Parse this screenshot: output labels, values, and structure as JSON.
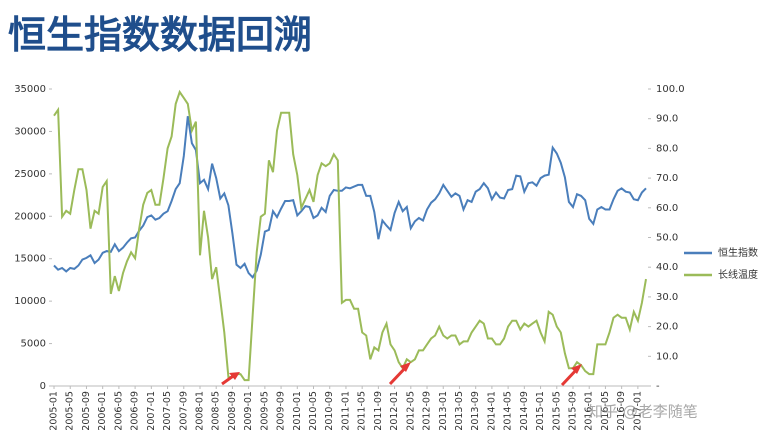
{
  "chart_data": {
    "type": "line",
    "title": "恒生指数数据回溯",
    "watermark": "知乎 @老李随笔",
    "categories": [
      "2005-01",
      null,
      null,
      null,
      "2005-05",
      null,
      null,
      null,
      "2005-09",
      null,
      null,
      null,
      "2006-01",
      null,
      null,
      null,
      "2006-05",
      null,
      null,
      null,
      "2006-09",
      null,
      null,
      null,
      "2007-01",
      null,
      null,
      null,
      "2007-05",
      null,
      null,
      null,
      "2007-09",
      null,
      null,
      null,
      "2008-01",
      null,
      null,
      null,
      "2008-05",
      null,
      null,
      null,
      "2008-09",
      null,
      null,
      null,
      "2009-01",
      null,
      null,
      null,
      "2009-05",
      null,
      null,
      null,
      "2009-09",
      null,
      null,
      null,
      "2010-01",
      null,
      null,
      null,
      "2010-05",
      null,
      null,
      null,
      "2010-09",
      null,
      null,
      null,
      "2011-01",
      null,
      null,
      null,
      "2011-05",
      null,
      null,
      null,
      "2011-09",
      null,
      null,
      null,
      "2012-01",
      null,
      null,
      null,
      "2012-05",
      null,
      null,
      null,
      "2012-09",
      null,
      null,
      null,
      "2013-01",
      null,
      null,
      null,
      "2013-05",
      null,
      null,
      null,
      "2013-09",
      null,
      null,
      null,
      "2014-01",
      null,
      null,
      null,
      "2014-05",
      null,
      null,
      null,
      "2014-09",
      null,
      null,
      null,
      "2015-01",
      null,
      null,
      null,
      "2015-05",
      null,
      null,
      null,
      "2015-09",
      null,
      null,
      null,
      "2016-01",
      null,
      null,
      null,
      "2016-05",
      null,
      null,
      null,
      "2016-09",
      null,
      null,
      null,
      "2017-01",
      null,
      null
    ],
    "series": [
      {
        "name": "恒生指数",
        "color": "#4a7ebb",
        "values": [
          14200,
          13700,
          13900,
          13500,
          13900,
          13800,
          14200,
          14900,
          15100,
          15400,
          14500,
          14900,
          15700,
          15900,
          15800,
          16700,
          15900,
          16300,
          16900,
          17400,
          17500,
          18300,
          18900,
          19900,
          20100,
          19600,
          19800,
          20300,
          20600,
          21800,
          23200,
          23900,
          27100,
          31800,
          28600,
          27800,
          23900,
          24300,
          23200,
          26200,
          24500,
          22100,
          22700,
          21300,
          18000,
          14300,
          13900,
          14400,
          13300,
          12800,
          13600,
          15500,
          18200,
          18400,
          20600,
          19900,
          20900,
          21800,
          21800,
          21900,
          20100,
          20600,
          21200,
          21100,
          19800,
          20100,
          21000,
          20500,
          22400,
          23100,
          23000,
          23000,
          23400,
          23300,
          23500,
          23700,
          23700,
          22400,
          22400,
          20500,
          17300,
          19500,
          18900,
          18400,
          20400,
          21700,
          20600,
          21100,
          18600,
          19400,
          19800,
          19500,
          20800,
          21600,
          22000,
          22700,
          23700,
          23000,
          22300,
          22700,
          22400,
          20800,
          21900,
          21700,
          22900,
          23200,
          23900,
          23300,
          22000,
          22800,
          22200,
          22100,
          23100,
          23200,
          24800,
          24700,
          22900,
          23900,
          24000,
          23600,
          24500,
          24800,
          24900,
          28100,
          27400,
          26300,
          24600,
          21700,
          21100,
          22600,
          22400,
          21900,
          19700,
          19100,
          20800,
          21100,
          20800,
          20800,
          22000,
          23000,
          23300,
          22900,
          22800,
          22000,
          21900,
          22800,
          23300
        ]
      },
      {
        "name": "长线温度",
        "color": "#9bbb59",
        "axis": "y2",
        "values": [
          91,
          93,
          57,
          59,
          58,
          66,
          73,
          73,
          66,
          53,
          59,
          58,
          67,
          69,
          31,
          37,
          32,
          38,
          42,
          45,
          43,
          53,
          61,
          65,
          66,
          61,
          61,
          70,
          80,
          84,
          95,
          99,
          97,
          95,
          86,
          89,
          44,
          59,
          50,
          36,
          40,
          29,
          18,
          3,
          3,
          4,
          4,
          2,
          2,
          24,
          45,
          57,
          58,
          76,
          72,
          86,
          92,
          92,
          92,
          78,
          71,
          60,
          63,
          66,
          62,
          71,
          75,
          74,
          75,
          78,
          76,
          28,
          29,
          29,
          26,
          26,
          18,
          17,
          9,
          13,
          12,
          18,
          21,
          14,
          12,
          8,
          6,
          9,
          8,
          9,
          12,
          12,
          14,
          16,
          17,
          20,
          17,
          16,
          17,
          17,
          14,
          15,
          15,
          18,
          20,
          22,
          21,
          16,
          16,
          14,
          14,
          16,
          20,
          22,
          22,
          19,
          21,
          20,
          21,
          22,
          18,
          15,
          25,
          24,
          20,
          18,
          11,
          6,
          6,
          8,
          7,
          5,
          4,
          4,
          14,
          14,
          14,
          18,
          23,
          24,
          23,
          23,
          19,
          25,
          22,
          28,
          36
        ]
      }
    ],
    "ylim": [
      0,
      35000
    ],
    "yticks": [
      0,
      5000,
      10000,
      15000,
      20000,
      25000,
      30000,
      35000
    ],
    "y2lim": [
      0,
      100
    ],
    "y2ticks": [
      {
        "value": 0,
        "label": "-"
      },
      {
        "value": 10,
        "label": "10.0"
      },
      {
        "value": 20,
        "label": "20.0"
      },
      {
        "value": 30,
        "label": "30.0"
      },
      {
        "value": 40,
        "label": "40.0"
      },
      {
        "value": 50,
        "label": "50.0"
      },
      {
        "value": 60,
        "label": "60.0"
      },
      {
        "value": 70,
        "label": "70.0"
      },
      {
        "value": 80,
        "label": "80.0"
      },
      {
        "value": 90,
        "label": "90.0"
      },
      {
        "value": 100,
        "label": "100.0"
      }
    ],
    "legend": "right",
    "grid": false
  }
}
